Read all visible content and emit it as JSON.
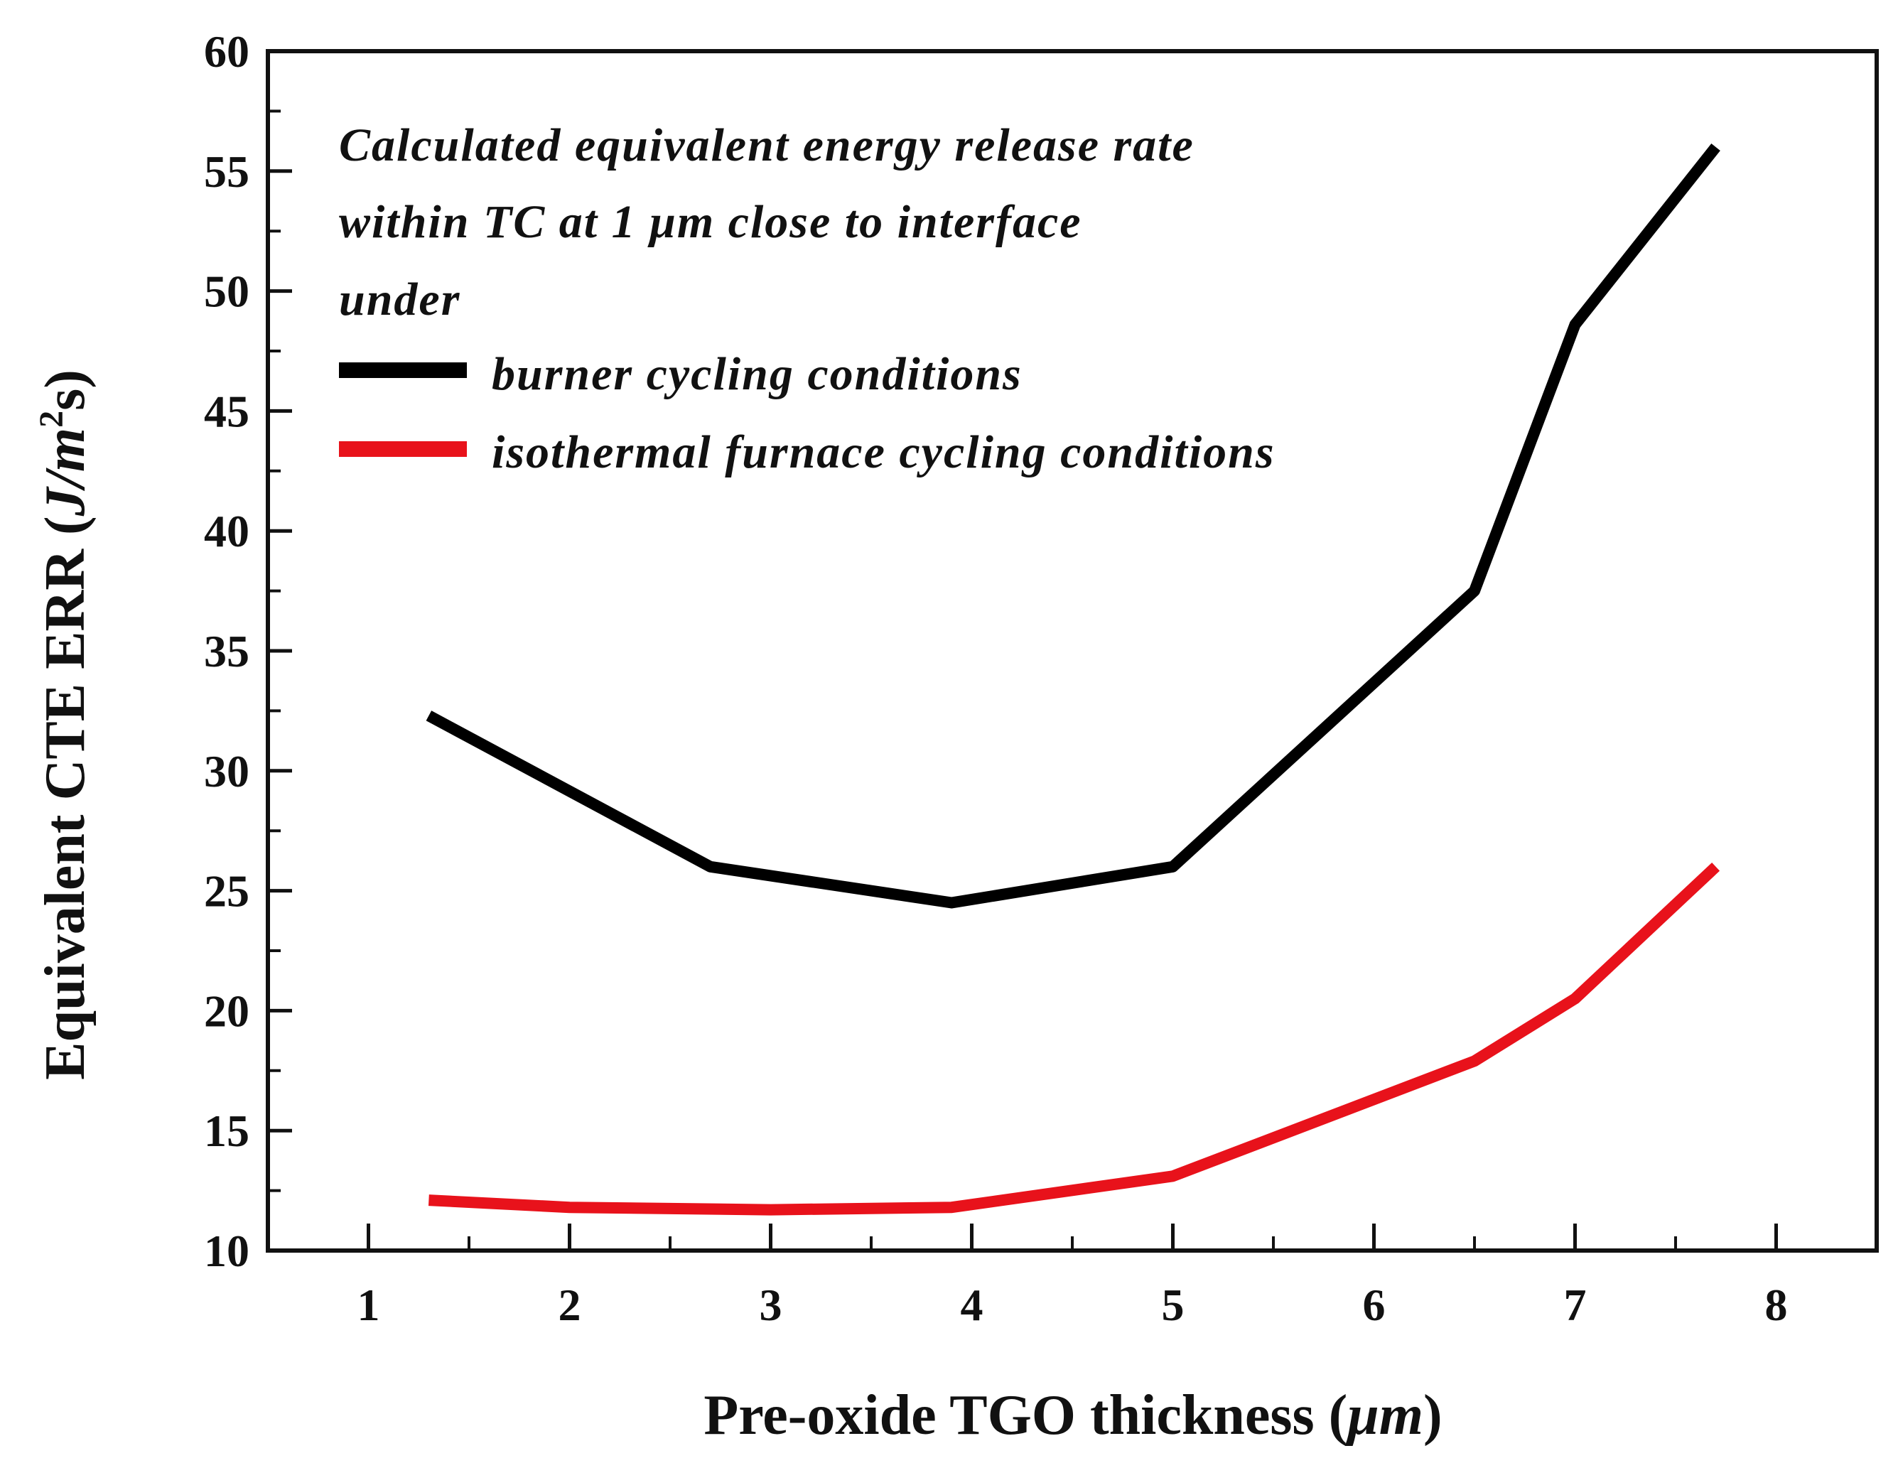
{
  "chart_data": {
    "type": "line",
    "title": "",
    "xlabel": "Pre-oxide TGO thickness (μm)",
    "xlabel_parts": {
      "main": "Pre-oxide TGO thickness (",
      "unit": "μm",
      "close": ")"
    },
    "ylabel": "Equivalent CTE ERR (J/m²s)",
    "ylabel_parts": {
      "main": "Equivalent CTE ERR (",
      "unit_j": "J/m",
      "sup": "2",
      "unit_s": "s)"
    },
    "xlim": [
      0.5,
      8.5
    ],
    "ylim": [
      10,
      60
    ],
    "xticks": [
      1,
      2,
      3,
      4,
      5,
      6,
      7,
      8
    ],
    "yticks": [
      10,
      15,
      20,
      25,
      30,
      35,
      40,
      45,
      50,
      55,
      60
    ],
    "annotation": [
      "Calculated equivalent energy release rate",
      "within TC at 1 μm close to interface",
      "under"
    ],
    "legend_position": "top-left",
    "series": [
      {
        "name": "burner cycling conditions",
        "color": "#000000",
        "x": [
          1.3,
          2.7,
          3.9,
          5.0,
          6.5,
          7.0,
          7.7
        ],
        "y": [
          32.3,
          26.0,
          24.5,
          26.0,
          37.5,
          48.6,
          56.0
        ]
      },
      {
        "name": "isothermal furnace cycling conditions",
        "color": "#e8121b",
        "x": [
          1.3,
          2.0,
          3.0,
          3.9,
          5.0,
          6.5,
          7.0,
          7.7
        ],
        "y": [
          12.1,
          11.8,
          11.7,
          11.8,
          13.1,
          17.9,
          20.5,
          26.0
        ]
      }
    ]
  }
}
